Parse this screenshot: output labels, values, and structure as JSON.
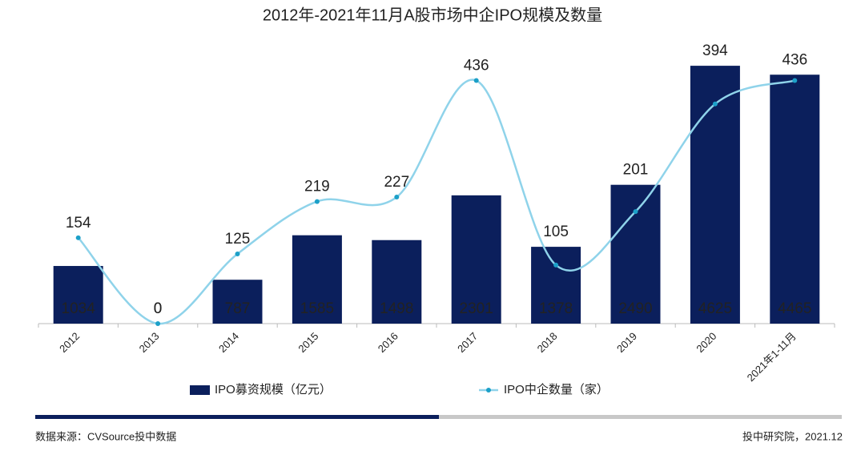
{
  "chart_data": {
    "type": "bar",
    "title": "2012年-2021年11月A股市场中企IPO规模及数量",
    "categories": [
      "2012",
      "2013",
      "2014",
      "2015",
      "2016",
      "2017",
      "2018",
      "2019",
      "2020",
      "2021年1-11月"
    ],
    "series": [
      {
        "name": "IPO募资规模（亿元）",
        "type": "bar",
        "color": "#0b1f5c",
        "values": [
          1034,
          0,
          787,
          1585,
          1498,
          2301,
          1378,
          2490,
          4625,
          4465
        ]
      },
      {
        "name": "IPO中企数量（家）",
        "type": "line",
        "axis": "y2",
        "color": "#8fd3ea",
        "values": [
          154,
          0,
          125,
          219,
          227,
          436,
          105,
          201,
          394,
          436
        ]
      }
    ],
    "ylim": [
      0,
      5000
    ],
    "y2lim": [
      0,
      500
    ],
    "source": "数据来源：CVSource投中数据",
    "credit": "投中研究院，2021.12"
  }
}
